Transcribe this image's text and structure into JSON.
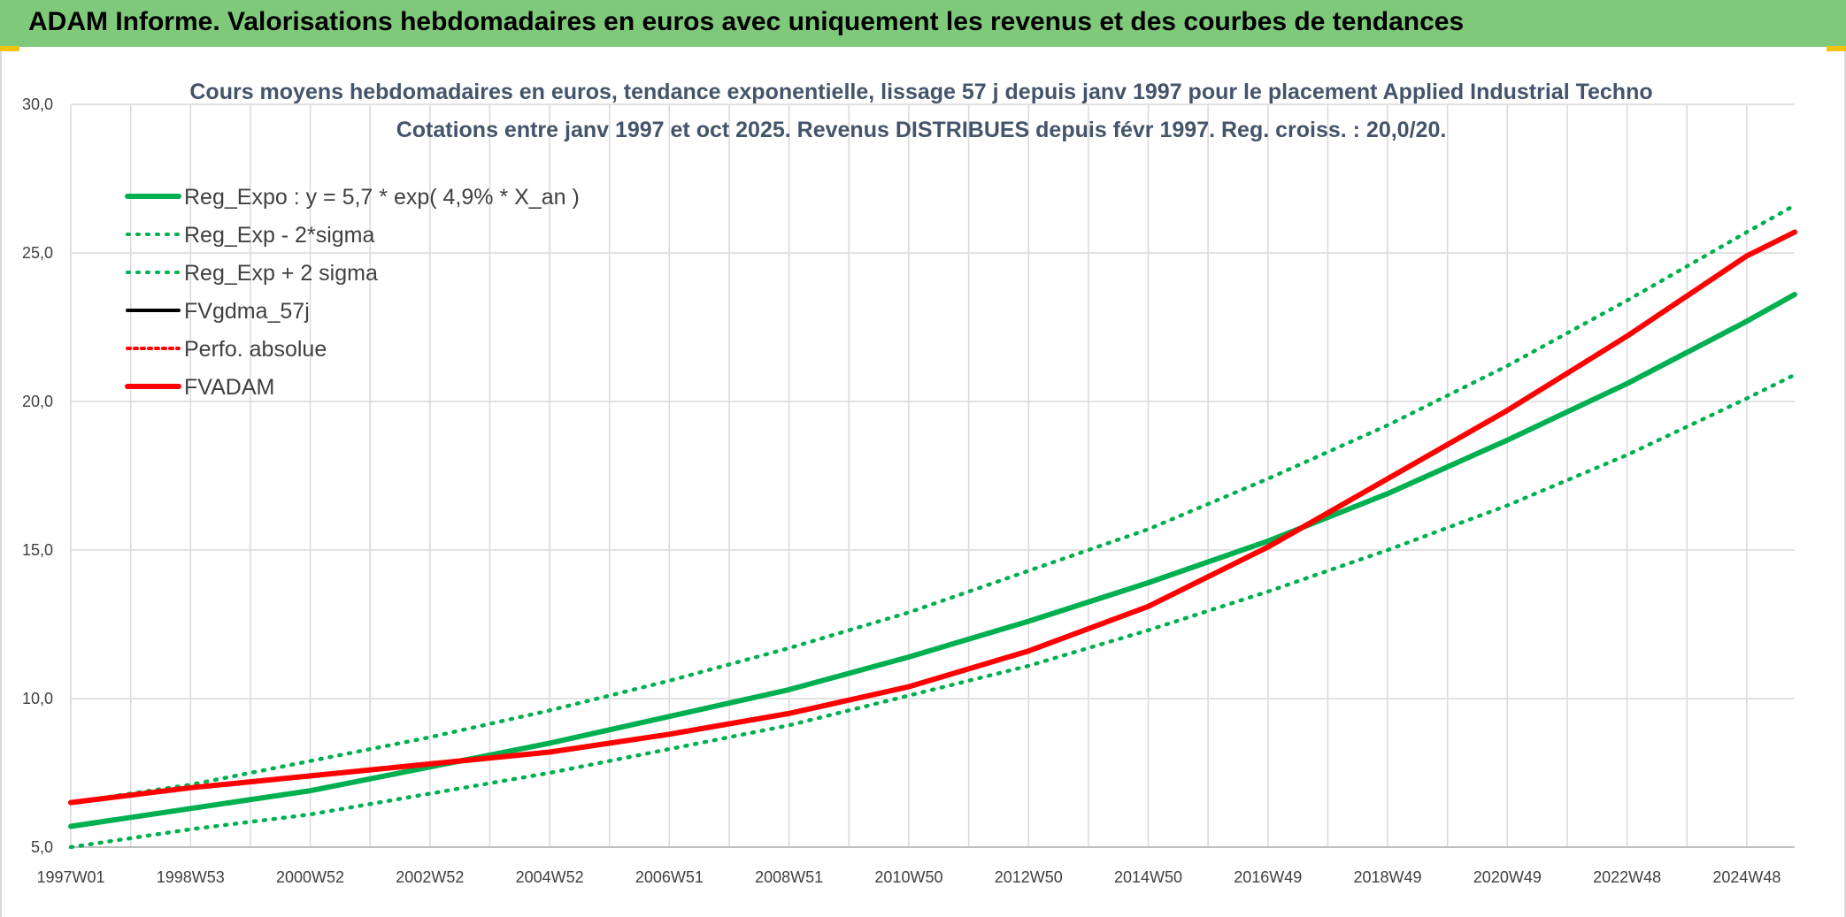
{
  "header": {
    "title": "ADAM Informe. Valorisations hebdomadaires en euros avec uniquement les revenus et des courbes de tendances"
  },
  "colors": {
    "banner": "#7fc97a",
    "green": "#00b050",
    "red": "#ff0000",
    "black": "#000000",
    "grid": "#d9d9d9"
  },
  "chart_data": {
    "type": "line",
    "title": "Cours moyens hebdomadaires en euros, tendance exponentielle, lissage 57 j depuis janv 1997 pour le placement Applied Industrial Techno",
    "subtitle": "Cotations entre janv 1997 et oct 2025. Revenus DISTRIBUES depuis févr 1997. Reg. croiss. : 20,0/20.",
    "xlabel": "",
    "ylabel": "",
    "ylim": [
      5,
      30
    ],
    "yticks": [
      "5,0",
      "10,0",
      "15,0",
      "20,0",
      "25,0",
      "30,0"
    ],
    "x_tick_labels": [
      "1997W01",
      "1998W53",
      "2000W52",
      "2002W52",
      "2004W52",
      "2006W51",
      "2008W51",
      "2010W50",
      "2012W50",
      "2014W50",
      "2016W49",
      "2018W49",
      "2020W49",
      "2022W48",
      "2024W48"
    ],
    "grid": true,
    "legend_position": "top-left",
    "x_years": [
      1997,
      1999,
      2001,
      2003,
      2005,
      2007,
      2009,
      2011,
      2013,
      2015,
      2017,
      2019,
      2021,
      2023,
      2025,
      2025.8
    ],
    "series": [
      {
        "name": "Reg_Expo : y = 5,7 * exp( 4,9% *  X_an )",
        "color": "#00b050",
        "style": "solid",
        "values": [
          5.7,
          6.3,
          6.9,
          7.7,
          8.5,
          9.4,
          10.3,
          11.4,
          12.6,
          13.9,
          15.3,
          16.9,
          18.7,
          20.6,
          22.7,
          23.6
        ]
      },
      {
        "name": "Reg_Exp - 2*sigma",
        "color": "#00b050",
        "style": "dotted",
        "values": [
          5.0,
          5.6,
          6.1,
          6.8,
          7.5,
          8.3,
          9.1,
          10.1,
          11.1,
          12.3,
          13.6,
          15.0,
          16.5,
          18.2,
          20.1,
          20.9
        ]
      },
      {
        "name": "Reg_Exp + 2 sigma",
        "color": "#00b050",
        "style": "dotted",
        "values": [
          6.5,
          7.1,
          7.9,
          8.7,
          9.6,
          10.6,
          11.7,
          12.9,
          14.3,
          15.7,
          17.4,
          19.2,
          21.2,
          23.4,
          25.7,
          26.6
        ]
      },
      {
        "name": "FVgdma_57j",
        "color": "#000000",
        "style": "solid",
        "values": [
          6.5,
          7.0,
          7.4,
          7.8,
          8.2,
          8.8,
          9.5,
          10.4,
          11.6,
          13.1,
          15.1,
          17.4,
          19.7,
          22.2,
          24.9,
          25.7
        ]
      },
      {
        "name": "Perfo. absolue",
        "color": "#ff0000",
        "style": "dotted",
        "values": [
          6.5,
          7.0,
          7.4,
          7.8,
          8.2,
          8.8,
          9.5,
          10.4,
          11.6,
          13.1,
          15.1,
          17.4,
          19.7,
          22.2,
          24.9,
          25.7
        ]
      },
      {
        "name": "FVADAM",
        "color": "#ff0000",
        "style": "solid",
        "values": [
          6.5,
          7.0,
          7.4,
          7.8,
          8.2,
          8.8,
          9.5,
          10.4,
          11.6,
          13.1,
          15.1,
          17.4,
          19.7,
          22.2,
          24.9,
          25.7
        ]
      }
    ]
  }
}
